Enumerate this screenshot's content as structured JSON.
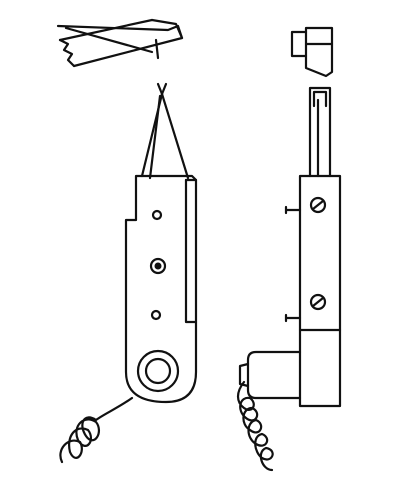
{
  "figure": {
    "background": "#ffffff",
    "ink_color": "#111111",
    "components": [
      {
        "id": "broken-wire-segment"
      },
      {
        "id": "front-view-tool"
      },
      {
        "id": "side-view-tool"
      }
    ]
  }
}
